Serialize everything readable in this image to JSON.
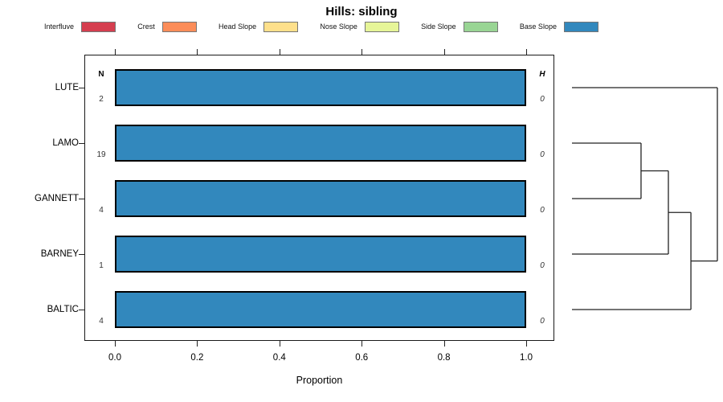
{
  "title": "Hills: sibling",
  "legend": {
    "items": [
      {
        "label": "Interfluve",
        "color": "#d53e4f"
      },
      {
        "label": "Crest",
        "color": "#fc8d59"
      },
      {
        "label": "Head Slope",
        "color": "#fee08b"
      },
      {
        "label": "Nose Slope",
        "color": "#e6f598"
      },
      {
        "label": "Side Slope",
        "color": "#99d594"
      },
      {
        "label": "Base Slope",
        "color": "#3288bd"
      }
    ]
  },
  "panel": {
    "n_header": "N",
    "h_header": "H"
  },
  "x_axis": {
    "title": "Proportion",
    "tick_labels": [
      "0.0",
      "0.2",
      "0.4",
      "0.6",
      "0.8",
      "1.0"
    ]
  },
  "chart_data": {
    "type": "bar",
    "orientation": "horizontal-stacked",
    "title": "Hills: sibling",
    "xlabel": "Proportion",
    "xlim": [
      0,
      1
    ],
    "x_ticks": [
      0.0,
      0.2,
      0.4,
      0.6,
      0.8,
      1.0
    ],
    "categories": [
      "LUTE",
      "LAMO",
      "GANNETT",
      "BARNEY",
      "BALTIC"
    ],
    "n_values": [
      2,
      19,
      4,
      1,
      4
    ],
    "h_values": [
      0,
      0,
      0,
      0,
      0
    ],
    "series": [
      {
        "name": "Interfluve",
        "color": "#d53e4f",
        "values": [
          0,
          0,
          0,
          0,
          0
        ]
      },
      {
        "name": "Crest",
        "color": "#fc8d59",
        "values": [
          0,
          0,
          0,
          0,
          0
        ]
      },
      {
        "name": "Head Slope",
        "color": "#fee08b",
        "values": [
          0,
          0,
          0,
          0,
          0
        ]
      },
      {
        "name": "Nose Slope",
        "color": "#e6f598",
        "values": [
          0,
          0,
          0,
          0,
          0
        ]
      },
      {
        "name": "Side Slope",
        "color": "#99d594",
        "values": [
          0,
          0,
          0,
          0,
          0
        ]
      },
      {
        "name": "Base Slope",
        "color": "#3288bd",
        "values": [
          1,
          1,
          1,
          1,
          1
        ]
      }
    ],
    "dendrogram": {
      "leaf_order": [
        "LUTE",
        "LAMO",
        "GANNETT",
        "BARNEY",
        "BALTIC"
      ],
      "merges": [
        {
          "a": "LAMO",
          "b": "GANNETT",
          "height": 0.475
        },
        {
          "a": "m0",
          "b": "BARNEY",
          "height": 0.663
        },
        {
          "a": "m1",
          "b": "BALTIC",
          "height": 0.818
        },
        {
          "a": "m2",
          "b": "LUTE",
          "height": 1.0
        }
      ]
    }
  }
}
